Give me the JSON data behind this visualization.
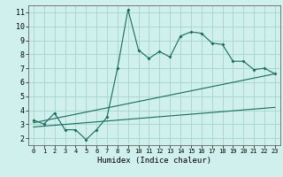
{
  "xlabel": "Humidex (Indice chaleur)",
  "bg_color": "#cff0ec",
  "grid_color": "#aad8d0",
  "line_color": "#1a6b5a",
  "xlim": [
    -0.5,
    23.5
  ],
  "ylim": [
    1.5,
    11.5
  ],
  "xticks": [
    0,
    1,
    2,
    3,
    4,
    5,
    6,
    7,
    8,
    9,
    10,
    11,
    12,
    13,
    14,
    15,
    16,
    17,
    18,
    19,
    20,
    21,
    22,
    23
  ],
  "yticks": [
    2,
    3,
    4,
    5,
    6,
    7,
    8,
    9,
    10,
    11
  ],
  "curve1_x": [
    0,
    1,
    2,
    3,
    4,
    5,
    6,
    7,
    8,
    9,
    10,
    11,
    12,
    13,
    14,
    15,
    16,
    17,
    18,
    19,
    20,
    21,
    22,
    23
  ],
  "curve1_y": [
    3.3,
    3.0,
    3.8,
    2.6,
    2.6,
    1.9,
    2.6,
    3.5,
    7.0,
    11.2,
    8.3,
    7.7,
    8.2,
    7.8,
    9.3,
    9.6,
    9.5,
    8.8,
    8.7,
    7.5,
    7.5,
    6.9,
    7.0,
    6.6
  ],
  "trend_x": [
    0,
    23
  ],
  "trend_y": [
    3.1,
    6.6
  ],
  "trend2_x": [
    0,
    23
  ],
  "trend2_y": [
    2.8,
    4.2
  ]
}
